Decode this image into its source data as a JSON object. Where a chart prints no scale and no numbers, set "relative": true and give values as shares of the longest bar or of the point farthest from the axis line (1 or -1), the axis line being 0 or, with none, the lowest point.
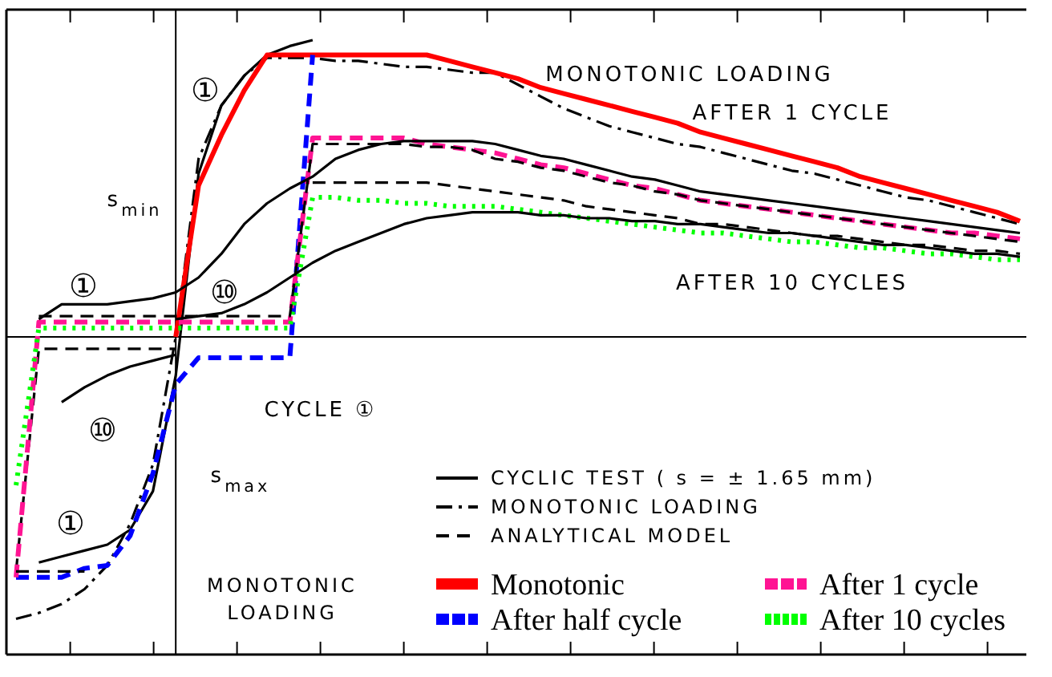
{
  "chart_data": {
    "type": "line",
    "relative": true,
    "legend": "bottom",
    "marker": "none",
    "categories": [
      null,
      null,
      null,
      null,
      null,
      null,
      null,
      null,
      null,
      null,
      null,
      null,
      null,
      null,
      null,
      null,
      null,
      null,
      null,
      null,
      null,
      null,
      null,
      null,
      null,
      null,
      null,
      null,
      null,
      null,
      null,
      null,
      null,
      null,
      null,
      null,
      null,
      null,
      null,
      null,
      null,
      null,
      null,
      null,
      null
    ],
    "series": [
      {
        "name": "CYCLIC TEST ( s = ± 1.65 mm)",
        "color": "#000000",
        "line_style": "solid",
        "values": [
          null,
          -0.76,
          -0.74,
          -0.72,
          -0.7,
          -0.65,
          -0.52,
          -0.13,
          0.55,
          0.78,
          0.88,
          0.95,
          0.98,
          1.0,
          null,
          null,
          null,
          null,
          null,
          null,
          null,
          null,
          null,
          null,
          null,
          null,
          null,
          null,
          null,
          null,
          null,
          null,
          null,
          null,
          null,
          null,
          null,
          null,
          null,
          null,
          null,
          null,
          null,
          null,
          null
        ]
      },
      {
        "name": "MONOTONIC LOADING",
        "color": "#000000",
        "line_style": "dashdot",
        "values": [
          -0.95,
          -0.93,
          -0.9,
          -0.85,
          -0.77,
          -0.63,
          -0.43,
          0,
          0.6,
          0.78,
          0.88,
          0.94,
          0.94,
          0.94,
          0.93,
          0.93,
          0.92,
          0.91,
          0.91,
          0.9,
          0.89,
          0.89,
          0.85,
          0.81,
          0.77,
          0.74,
          0.71,
          0.69,
          0.67,
          0.65,
          0.64,
          0.62,
          0.6,
          0.58,
          0.56,
          0.55,
          0.53,
          0.51,
          0.49,
          0.47,
          0.46,
          0.44,
          0.42,
          0.4,
          0.38
        ]
      },
      {
        "name": "ANALYTICAL MODEL",
        "color": "#000000",
        "line_style": "dashed",
        "values": [
          -0.79,
          -0.04,
          -0.04,
          -0.04,
          -0.04,
          -0.04,
          -0.04,
          -0.04,
          null,
          null,
          null,
          null,
          null,
          null,
          null,
          null,
          null,
          null,
          null,
          null,
          null,
          null,
          null,
          null,
          null,
          null,
          null,
          null,
          null,
          null,
          null,
          null,
          null,
          null,
          null,
          null,
          null,
          null,
          null,
          null,
          null,
          null,
          null,
          null,
          null
        ]
      },
      {
        "name": "Monotonic",
        "color": "#ff0000",
        "line_style": "solid",
        "values": [
          null,
          null,
          null,
          null,
          null,
          null,
          null,
          0,
          0.51,
          0.68,
          0.83,
          0.95,
          0.95,
          0.95,
          0.95,
          0.95,
          0.95,
          0.95,
          0.95,
          0.93,
          0.91,
          0.89,
          0.87,
          0.84,
          0.82,
          0.8,
          0.78,
          0.76,
          0.74,
          0.72,
          0.69,
          0.67,
          0.65,
          0.63,
          0.61,
          0.59,
          0.57,
          0.54,
          0.52,
          0.5,
          0.48,
          0.46,
          0.44,
          0.42,
          0.39
        ]
      },
      {
        "name": "After half cycle",
        "color": "#0000ff",
        "line_style": "dashed",
        "values": [
          -0.81,
          -0.81,
          -0.81,
          -0.78,
          -0.77,
          -0.67,
          -0.46,
          -0.16,
          -0.07,
          -0.07,
          -0.07,
          -0.07,
          -0.07,
          0.95,
          null,
          null,
          null,
          null,
          null,
          null,
          null,
          null,
          null,
          null,
          null,
          null,
          null,
          null,
          null,
          null,
          null,
          null,
          null,
          null,
          null,
          null,
          null,
          null,
          null,
          null,
          null,
          null,
          null,
          null,
          null
        ]
      },
      {
        "name": "After 1 cycle",
        "color": "#ff1493",
        "line_style": "dashed",
        "values": [
          -0.81,
          0.05,
          0.05,
          0.05,
          0.05,
          0.05,
          0.05,
          0.05,
          0.05,
          0.05,
          0.05,
          0.05,
          0.05,
          0.67,
          0.67,
          0.67,
          0.67,
          0.67,
          0.65,
          0.64,
          0.63,
          0.62,
          0.6,
          0.58,
          0.57,
          0.55,
          0.53,
          0.51,
          0.5,
          0.48,
          0.46,
          0.45,
          0.44,
          0.43,
          0.42,
          0.41,
          0.4,
          0.39,
          0.38,
          0.37,
          0.36,
          0.35,
          0.35,
          0.34,
          0.33
        ]
      },
      {
        "name": "After 10 cycles",
        "color": "#00ff00",
        "line_style": "dotted",
        "values": [
          -0.5,
          0.03,
          0.03,
          0.03,
          0.03,
          0.03,
          0.03,
          0.03,
          0.03,
          0.03,
          0.03,
          0.03,
          0.03,
          0.47,
          0.47,
          0.46,
          0.46,
          0.45,
          0.45,
          0.44,
          0.44,
          0.44,
          0.43,
          0.42,
          0.41,
          0.4,
          0.39,
          0.38,
          0.37,
          0.36,
          0.35,
          0.35,
          0.34,
          0.33,
          0.32,
          0.32,
          0.31,
          0.3,
          0.3,
          0.29,
          0.28,
          0.28,
          0.27,
          0.26,
          0.26
        ]
      },
      {
        "color": "#000000",
        "line_style": "solid",
        "values": [
          null,
          0.06,
          0.11,
          0.11,
          0.11,
          0.12,
          0.13,
          0.15,
          0.2,
          0.28,
          0.38,
          0.45,
          0.5,
          0.54,
          0.6,
          0.63,
          0.65,
          0.66,
          0.66,
          0.66,
          0.66,
          0.65,
          0.63,
          0.61,
          0.6,
          0.58,
          0.56,
          0.54,
          0.53,
          0.51,
          0.49,
          0.48,
          0.47,
          0.46,
          0.45,
          0.44,
          0.43,
          0.42,
          0.41,
          0.4,
          0.39,
          0.38,
          0.37,
          0.36,
          0.35
        ]
      },
      {
        "color": "#000000",
        "line_style": "solid",
        "values": [
          null,
          null,
          null,
          null,
          null,
          null,
          null,
          0.06,
          0.07,
          0.08,
          0.11,
          0.15,
          0.2,
          0.25,
          0.29,
          0.32,
          0.35,
          0.38,
          0.4,
          0.41,
          0.42,
          0.42,
          0.42,
          0.41,
          0.41,
          0.4,
          0.4,
          0.39,
          0.39,
          0.38,
          0.38,
          0.37,
          0.36,
          0.35,
          0.35,
          0.34,
          0.33,
          0.32,
          0.31,
          0.31,
          0.3,
          0.29,
          0.28,
          0.28,
          0.27
        ]
      },
      {
        "color": "#000000",
        "line_style": "solid",
        "values": [
          null,
          null,
          -0.22,
          -0.17,
          -0.13,
          -0.1,
          -0.08,
          -0.06,
          null,
          null,
          null,
          null,
          null,
          null,
          null,
          null,
          null,
          null,
          null,
          null,
          null,
          null,
          null,
          null,
          null,
          null,
          null,
          null,
          null,
          null,
          null,
          null,
          null,
          null,
          null,
          null,
          null,
          null,
          null,
          null,
          null,
          null,
          null,
          null,
          null
        ]
      },
      {
        "color": "#000000",
        "line_style": "dashed",
        "values": [
          null,
          0.07,
          0.07,
          0.07,
          0.07,
          0.07,
          0.07,
          0.07,
          0.07,
          0.07,
          0.07,
          0.07,
          0.07,
          0.65,
          0.65,
          0.65,
          0.65,
          0.65,
          0.64,
          0.64,
          0.63,
          0.6,
          0.59,
          0.57,
          0.56,
          0.54,
          0.52,
          0.51,
          0.49,
          0.48,
          0.46,
          0.45,
          0.44,
          0.43,
          0.42,
          0.41,
          0.4,
          0.39,
          0.38,
          0.37,
          0.36,
          0.35,
          0.34,
          0.33,
          0.32
        ]
      },
      {
        "color": "#000000",
        "line_style": "dashed",
        "values": [
          null,
          null,
          null,
          null,
          null,
          null,
          null,
          null,
          null,
          null,
          null,
          null,
          null,
          0.52,
          0.52,
          0.52,
          0.52,
          0.52,
          0.52,
          0.51,
          0.5,
          0.49,
          0.48,
          0.47,
          0.46,
          0.44,
          0.43,
          0.42,
          0.41,
          0.4,
          0.38,
          0.38,
          0.37,
          0.36,
          0.35,
          0.34,
          0.34,
          0.33,
          0.32,
          0.31,
          0.31,
          0.3,
          0.29,
          0.29,
          0.28
        ]
      },
      {
        "color": "#000000",
        "line_style": "dashed",
        "values": [
          -0.79,
          -0.79,
          -0.79,
          -0.79,
          null,
          null,
          null,
          null,
          null,
          null,
          null,
          null,
          null,
          null,
          null,
          null,
          null,
          null,
          null,
          null,
          null,
          null,
          null,
          null,
          null,
          null,
          null,
          null,
          null,
          null,
          null,
          null,
          null,
          null,
          null,
          null,
          null,
          null,
          null,
          null,
          null,
          null,
          null,
          null,
          null
        ]
      }
    ],
    "annotations": [
      "MONOTONIC LOADING",
      "AFTER 1 CYCLE",
      "AFTER 10 CYCLES",
      "CYCLE ①",
      "MONOTONIC LOADING",
      "s$_{min}$",
      "s$_{max}$",
      "①",
      "①",
      "①",
      "⑩",
      "⑩"
    ]
  }
}
